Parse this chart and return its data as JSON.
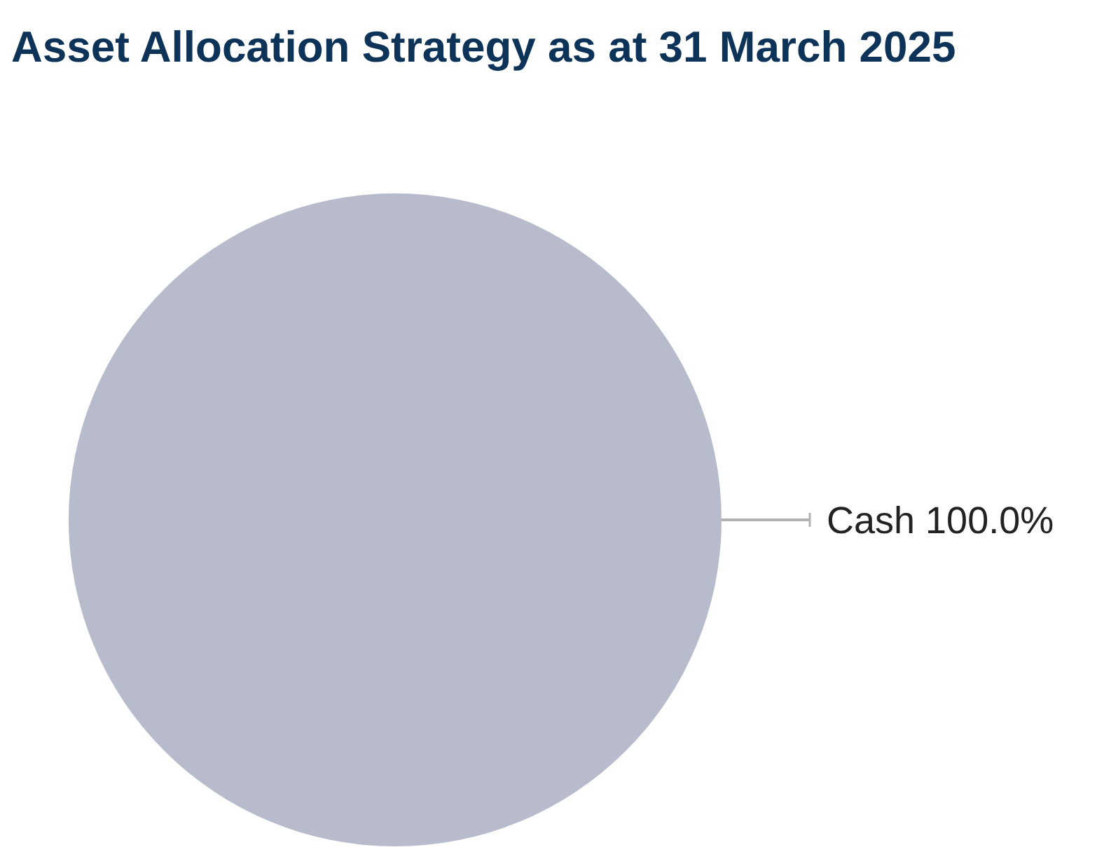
{
  "chart_data": {
    "type": "pie",
    "title": "Asset Allocation Strategy as at 31 March 2025",
    "categories": [
      "Cash"
    ],
    "values": [
      100
    ],
    "colors": [
      "#b8bbcc"
    ],
    "value_labels": [
      "100.0%"
    ]
  }
}
